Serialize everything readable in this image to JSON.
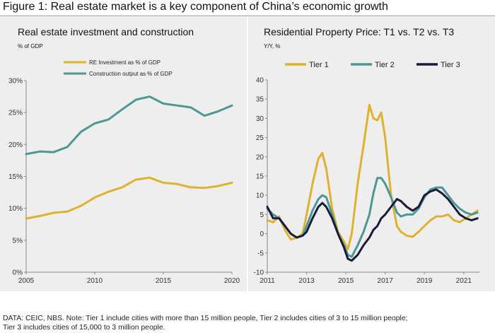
{
  "figure_title": "Figure 1: Real estate market is a key component of China’s economic growth",
  "footnote": {
    "line1": "DATA: CEIC, NBS. Note: Tier 1 include cities with more than 15 million people, Tier 2 includes cities of 3 to 15 million people;",
    "line2": "Tier 3 includes cities of 15,000 to 3 million people."
  },
  "chart_data": [
    {
      "type": "line",
      "title": "Real estate investment and construction",
      "ylabel": "% of GDP",
      "xlabel": "",
      "xlim": [
        2005,
        2020
      ],
      "ylim": [
        0,
        30
      ],
      "x_ticks": [
        "2005",
        "2010",
        "2015",
        "2020"
      ],
      "y_ticks": [
        "0%",
        "5%",
        "10%",
        "15%",
        "20%",
        "25%",
        "30%"
      ],
      "grid": false,
      "legend": "top-left",
      "series": [
        {
          "name": "RE Investment as % of GDP",
          "color": "#e0b12c",
          "x": [
            2005,
            2006,
            2007,
            2008,
            2009,
            2010,
            2011,
            2012,
            2013,
            2014,
            2015,
            2016,
            2017,
            2018,
            2019,
            2020
          ],
          "values": [
            8.4,
            8.8,
            9.3,
            9.5,
            10.4,
            11.7,
            12.6,
            13.3,
            14.5,
            14.8,
            14.0,
            13.8,
            13.3,
            13.2,
            13.5,
            14.0
          ]
        },
        {
          "name": "Construction output as % of GDP",
          "color": "#4b9896",
          "x": [
            2005,
            2006,
            2007,
            2008,
            2009,
            2010,
            2011,
            2012,
            2013,
            2014,
            2015,
            2016,
            2017,
            2018,
            2019,
            2020
          ],
          "values": [
            18.5,
            18.9,
            18.8,
            19.6,
            22.0,
            23.3,
            23.9,
            25.5,
            27.0,
            27.5,
            26.4,
            26.1,
            25.8,
            24.5,
            25.2,
            26.1
          ]
        }
      ]
    },
    {
      "type": "line",
      "title": "Residential Property Price: T1 vs. T2 vs. T3",
      "ylabel": "Y/Y, %",
      "xlabel": "",
      "xlim": [
        2011,
        2021.8
      ],
      "ylim": [
        -10,
        40
      ],
      "x_ticks": [
        "2011",
        "2013",
        "2015",
        "2017",
        "2019",
        "2021"
      ],
      "y_ticks": [
        "-10",
        "-5",
        "0",
        "5",
        "10",
        "15",
        "20",
        "25",
        "30",
        "35",
        "40"
      ],
      "grid": false,
      "legend": "top",
      "series": [
        {
          "name": "Tier 1",
          "color": "#e0b12c",
          "x": [
            2011.0,
            2011.3,
            2011.6,
            2011.9,
            2012.2,
            2012.5,
            2012.8,
            2013.0,
            2013.3,
            2013.6,
            2013.8,
            2014.0,
            2014.3,
            2014.6,
            2014.9,
            2015.1,
            2015.3,
            2015.6,
            2015.9,
            2016.2,
            2016.4,
            2016.6,
            2016.8,
            2017.0,
            2017.3,
            2017.6,
            2017.8,
            2018.1,
            2018.4,
            2018.7,
            2019.0,
            2019.3,
            2019.6,
            2019.9,
            2020.2,
            2020.5,
            2020.8,
            2021.1,
            2021.4,
            2021.7
          ],
          "values": [
            3.5,
            3.0,
            4.5,
            1.0,
            -1.5,
            -1.0,
            0.0,
            5.0,
            13.0,
            19.5,
            21.0,
            17.0,
            6.5,
            0.5,
            -2.0,
            -4.0,
            0.0,
            13.0,
            23.0,
            33.5,
            30.0,
            29.5,
            31.5,
            25.0,
            10.0,
            2.0,
            0.5,
            -0.5,
            -0.8,
            0.5,
            2.0,
            3.5,
            4.5,
            4.5,
            5.0,
            3.5,
            3.0,
            4.0,
            5.0,
            6.0
          ]
        },
        {
          "name": "Tier 2",
          "color": "#4b9896",
          "x": [
            2011.0,
            2011.3,
            2011.6,
            2011.9,
            2012.2,
            2012.5,
            2012.8,
            2013.0,
            2013.3,
            2013.6,
            2013.8,
            2014.0,
            2014.3,
            2014.6,
            2014.9,
            2015.1,
            2015.3,
            2015.6,
            2015.9,
            2016.2,
            2016.4,
            2016.6,
            2016.8,
            2017.0,
            2017.3,
            2017.6,
            2017.8,
            2018.1,
            2018.4,
            2018.7,
            2019.0,
            2019.3,
            2019.6,
            2019.9,
            2020.2,
            2020.5,
            2020.8,
            2021.1,
            2021.4,
            2021.7
          ],
          "values": [
            6.5,
            5.0,
            4.0,
            2.0,
            0.0,
            -1.0,
            -0.5,
            2.0,
            6.0,
            9.0,
            10.0,
            9.5,
            5.0,
            0.0,
            -3.0,
            -5.5,
            -6.0,
            -3.0,
            0.5,
            5.0,
            10.5,
            14.5,
            14.5,
            13.0,
            9.5,
            5.5,
            4.5,
            5.0,
            5.0,
            6.5,
            9.5,
            11.5,
            12.0,
            12.0,
            10.0,
            8.0,
            6.5,
            5.5,
            5.0,
            5.5
          ]
        },
        {
          "name": "Tier 3",
          "color": "#1a1a3c",
          "x": [
            2011.0,
            2011.3,
            2011.6,
            2011.9,
            2012.2,
            2012.5,
            2012.8,
            2013.0,
            2013.3,
            2013.6,
            2013.8,
            2014.0,
            2014.3,
            2014.6,
            2014.9,
            2015.1,
            2015.3,
            2015.6,
            2015.9,
            2016.2,
            2016.4,
            2016.6,
            2016.8,
            2017.0,
            2017.3,
            2017.6,
            2017.8,
            2018.1,
            2018.4,
            2018.7,
            2019.0,
            2019.3,
            2019.6,
            2019.9,
            2020.2,
            2020.5,
            2020.8,
            2021.1,
            2021.4,
            2021.7
          ],
          "values": [
            7.0,
            4.0,
            4.0,
            2.0,
            0.0,
            -1.0,
            -0.5,
            0.5,
            4.0,
            7.0,
            8.0,
            7.0,
            4.0,
            0.0,
            -3.5,
            -6.5,
            -7.0,
            -5.5,
            -3.0,
            -1.0,
            1.0,
            2.0,
            4.0,
            5.0,
            7.0,
            9.0,
            8.5,
            7.0,
            6.0,
            7.0,
            10.0,
            11.0,
            11.5,
            10.5,
            9.0,
            7.0,
            5.0,
            4.0,
            3.5,
            4.0
          ]
        }
      ]
    }
  ]
}
